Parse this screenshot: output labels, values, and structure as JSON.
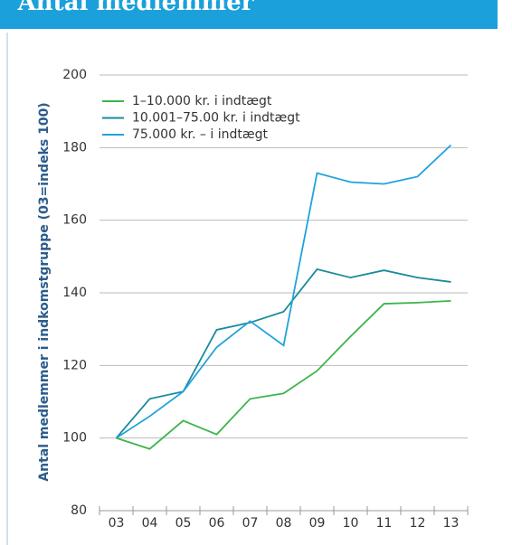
{
  "chart_data": {
    "type": "line",
    "title": "Antal medlemmer",
    "y_label": "Antal medlemmer i indkomstgruppe (03=indeks 100)",
    "categories": [
      "03",
      "04",
      "05",
      "06",
      "07",
      "08",
      "09",
      "10",
      "11",
      "12",
      "13"
    ],
    "series": [
      {
        "name": "1–10.000 kr. i indtægt",
        "color": "#3cb54a",
        "values": [
          100,
          97,
          104.8,
          101,
          110.8,
          112.3,
          118.5,
          128,
          137,
          137.3,
          137.8
        ]
      },
      {
        "name": "10.001–75.00 kr. i indtægt",
        "color": "#1a8a9a",
        "values": [
          100,
          110.8,
          112.8,
          129.8,
          131.8,
          134.8,
          146.5,
          144.2,
          146.2,
          144.2,
          143
        ]
      },
      {
        "name": "75.000 kr. – i indtægt",
        "color": "#1fa3dc",
        "values": [
          100,
          106,
          112.8,
          125,
          132.2,
          125.5,
          173,
          170.5,
          170,
          172,
          180.7
        ]
      }
    ],
    "ylim": [
      80,
      200
    ],
    "yticks": [
      80,
      100,
      120,
      140,
      160,
      180,
      200
    ],
    "grid": true
  }
}
